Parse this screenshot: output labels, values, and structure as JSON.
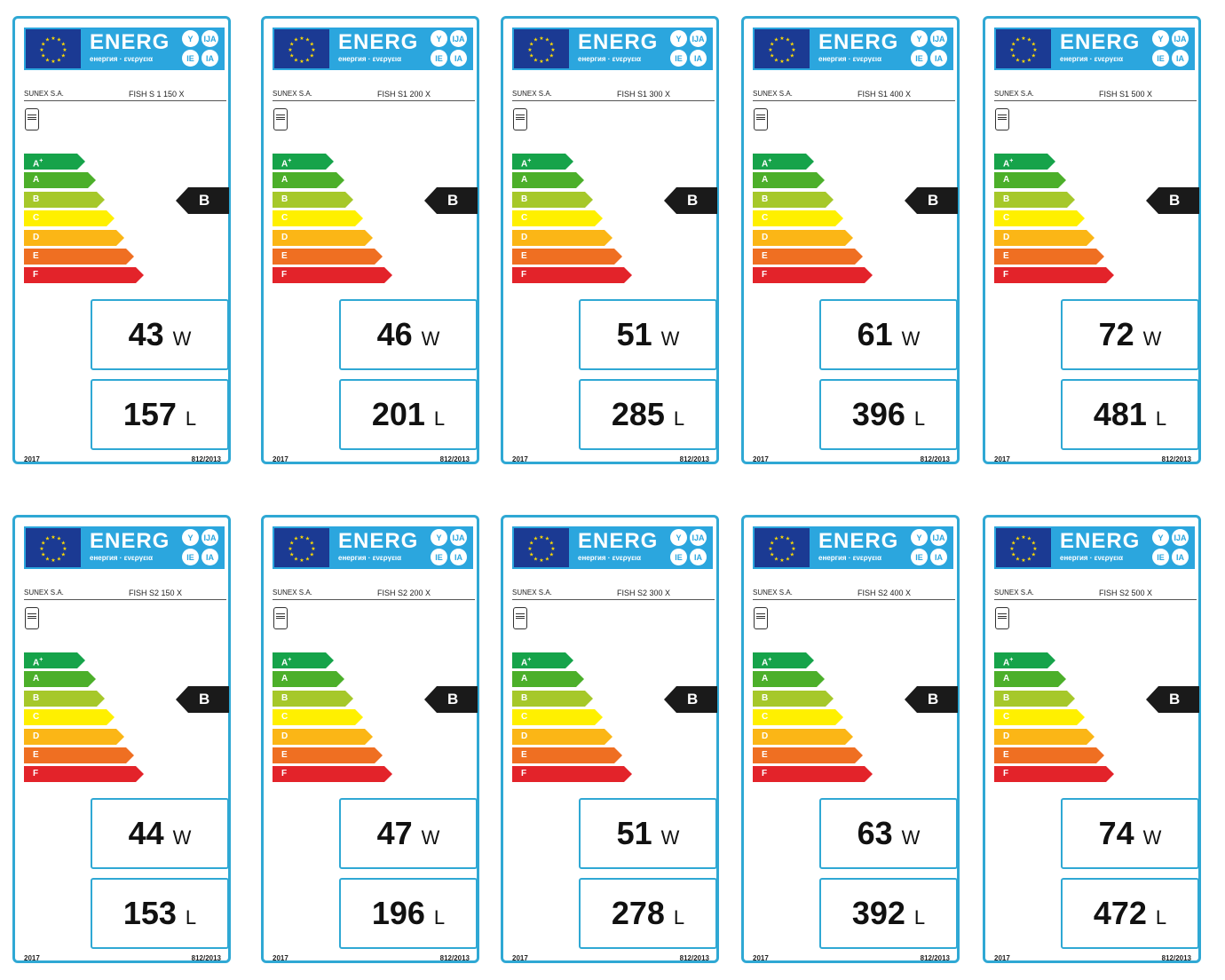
{
  "header": {
    "energy_word": "ENERG",
    "energy_sub": "енергия · ενεργεια",
    "languages": [
      "Y",
      "IJA",
      "IE",
      "IA"
    ]
  },
  "scale": [
    {
      "label": "A",
      "sup": "+",
      "color": "#16a34a"
    },
    {
      "label": "A",
      "sup": "",
      "color": "#4caf2a"
    },
    {
      "label": "B",
      "sup": "",
      "color": "#a6c82a"
    },
    {
      "label": "C",
      "sup": "",
      "color": "#fff000"
    },
    {
      "label": "D",
      "sup": "",
      "color": "#fbb616"
    },
    {
      "label": "E",
      "sup": "",
      "color": "#ef6f22"
    },
    {
      "label": "F",
      "sup": "",
      "color": "#e3232a"
    }
  ],
  "labels": [
    {
      "supplier": "SUNEX S.A.",
      "model": "FISH S 1 150 X",
      "rating": "B",
      "power": "43",
      "power_unit": "W",
      "volume": "157",
      "volume_unit": "L",
      "year": "2017",
      "regulation": "812/2013"
    },
    {
      "supplier": "SUNEX S.A.",
      "model": "FISH S1 200 X",
      "rating": "B",
      "power": "46",
      "power_unit": "W",
      "volume": "201",
      "volume_unit": "L",
      "year": "2017",
      "regulation": "812/2013"
    },
    {
      "supplier": "SUNEX S.A.",
      "model": "FISH S1 300 X",
      "rating": "B",
      "power": "51",
      "power_unit": "W",
      "volume": "285",
      "volume_unit": "L",
      "year": "2017",
      "regulation": "812/2013"
    },
    {
      "supplier": "SUNEX S.A.",
      "model": "FISH S1 400 X",
      "rating": "B",
      "power": "61",
      "power_unit": "W",
      "volume": "396",
      "volume_unit": "L",
      "year": "2017",
      "regulation": "812/2013"
    },
    {
      "supplier": "SUNEX S.A.",
      "model": "FISH S1 500 X",
      "rating": "B",
      "power": "72",
      "power_unit": "W",
      "volume": "481",
      "volume_unit": "L",
      "year": "2017",
      "regulation": "812/2013"
    },
    {
      "supplier": "SUNEX S.A.",
      "model": "FISH S2 150 X",
      "rating": "B",
      "power": "44",
      "power_unit": "W",
      "volume": "153",
      "volume_unit": "L",
      "year": "2017",
      "regulation": "812/2013"
    },
    {
      "supplier": "SUNEX S.A.",
      "model": "FISH S2 200 X",
      "rating": "B",
      "power": "47",
      "power_unit": "W",
      "volume": "196",
      "volume_unit": "L",
      "year": "2017",
      "regulation": "812/2013"
    },
    {
      "supplier": "SUNEX S.A.",
      "model": "FISH S2 300 X",
      "rating": "B",
      "power": "51",
      "power_unit": "W",
      "volume": "278",
      "volume_unit": "L",
      "year": "2017",
      "regulation": "812/2013"
    },
    {
      "supplier": "SUNEX S.A.",
      "model": "FISH S2 400 X",
      "rating": "B",
      "power": "63",
      "power_unit": "W",
      "volume": "392",
      "volume_unit": "L",
      "year": "2017",
      "regulation": "812/2013"
    },
    {
      "supplier": "SUNEX S.A.",
      "model": "FISH S2 500 X",
      "rating": "B",
      "power": "74",
      "power_unit": "W",
      "volume": "472",
      "volume_unit": "L",
      "year": "2017",
      "regulation": "812/2013"
    }
  ]
}
